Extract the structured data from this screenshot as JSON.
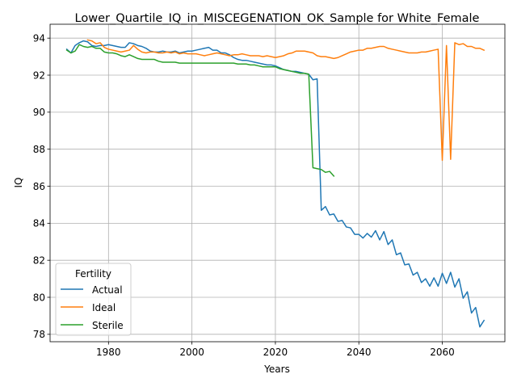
{
  "chart_data": {
    "type": "line",
    "title": "Lower_Quartile_IQ_in_MISCEGENATION_OK_Sample for White_Female",
    "xlabel": "Years",
    "ylabel": "IQ",
    "xlim": [
      1966,
      2075
    ],
    "ylim": [
      77.6,
      94.75
    ],
    "xticks": [
      1980,
      2000,
      2020,
      2040,
      2060
    ],
    "yticks": [
      78,
      80,
      82,
      84,
      86,
      88,
      90,
      92,
      94
    ],
    "grid": true,
    "legend": {
      "title": "Fertility",
      "placement": "lower-left"
    },
    "series": [
      {
        "name": "Actual",
        "color": "#1f77b4",
        "x": [
          1970,
          1971,
          1972,
          1973,
          1974,
          1975,
          1976,
          1977,
          1978,
          1979,
          1980,
          1981,
          1982,
          1983,
          1984,
          1985,
          1986,
          1987,
          1988,
          1989,
          1990,
          1991,
          1992,
          1993,
          1994,
          1995,
          1996,
          1997,
          1998,
          1999,
          2000,
          2001,
          2002,
          2003,
          2004,
          2005,
          2006,
          2007,
          2008,
          2009,
          2010,
          2011,
          2012,
          2013,
          2014,
          2015,
          2016,
          2017,
          2018,
          2019,
          2020,
          2021,
          2022,
          2023,
          2024,
          2025,
          2026,
          2027,
          2028,
          2029,
          2030,
          2031,
          2032,
          2033,
          2034,
          2035,
          2036,
          2037,
          2038,
          2039,
          2040,
          2041,
          2042,
          2043,
          2044,
          2045,
          2046,
          2047,
          2048,
          2049,
          2050,
          2051,
          2052,
          2053,
          2054,
          2055,
          2056,
          2057,
          2058,
          2059,
          2060,
          2061,
          2062,
          2063,
          2064,
          2065,
          2066,
          2067,
          2068,
          2069,
          2070
        ],
        "y": [
          93.4,
          93.2,
          93.6,
          93.75,
          93.85,
          93.8,
          93.6,
          93.55,
          93.6,
          93.6,
          93.65,
          93.6,
          93.55,
          93.5,
          93.5,
          93.75,
          93.7,
          93.6,
          93.55,
          93.45,
          93.3,
          93.25,
          93.25,
          93.3,
          93.25,
          93.25,
          93.3,
          93.2,
          93.25,
          93.3,
          93.3,
          93.35,
          93.4,
          93.45,
          93.5,
          93.35,
          93.35,
          93.2,
          93.2,
          93.1,
          92.95,
          92.85,
          92.8,
          92.8,
          92.75,
          92.7,
          92.65,
          92.6,
          92.55,
          92.55,
          92.5,
          92.4,
          92.3,
          92.25,
          92.2,
          92.2,
          92.15,
          92.1,
          92.05,
          91.75,
          91.8,
          84.7,
          84.9,
          84.45,
          84.5,
          84.1,
          84.15,
          83.8,
          83.75,
          83.4,
          83.4,
          83.2,
          83.45,
          83.25,
          83.6,
          83.1,
          83.55,
          82.85,
          83.1,
          82.3,
          82.4,
          81.75,
          81.8,
          81.2,
          81.35,
          80.8,
          81.0,
          80.6,
          81.05,
          80.6,
          81.3,
          80.75,
          81.35,
          80.55,
          81.0,
          79.95,
          80.3,
          79.15,
          79.45,
          78.4,
          78.75
        ]
      },
      {
        "name": "Ideal",
        "color": "#ff7f0e",
        "x": [
          1975,
          1976,
          1977,
          1978,
          1979,
          1980,
          1981,
          1982,
          1983,
          1984,
          1985,
          1986,
          1987,
          1988,
          1989,
          1990,
          1991,
          1992,
          1993,
          1994,
          1995,
          1996,
          1997,
          1998,
          1999,
          2000,
          2001,
          2002,
          2003,
          2004,
          2005,
          2006,
          2007,
          2008,
          2009,
          2010,
          2011,
          2012,
          2013,
          2014,
          2015,
          2016,
          2017,
          2018,
          2019,
          2020,
          2021,
          2022,
          2023,
          2024,
          2025,
          2026,
          2027,
          2028,
          2029,
          2030,
          2031,
          2032,
          2033,
          2034,
          2035,
          2036,
          2037,
          2038,
          2039,
          2040,
          2041,
          2042,
          2043,
          2044,
          2045,
          2046,
          2047,
          2048,
          2049,
          2050,
          2051,
          2052,
          2053,
          2054,
          2055,
          2056,
          2057,
          2058,
          2059,
          2060,
          2061,
          2062,
          2063,
          2064,
          2065,
          2066,
          2067,
          2068,
          2069,
          2070
        ],
        "y": [
          93.9,
          93.85,
          93.7,
          93.75,
          93.5,
          93.4,
          93.35,
          93.3,
          93.25,
          93.3,
          93.35,
          93.6,
          93.4,
          93.25,
          93.2,
          93.25,
          93.25,
          93.2,
          93.2,
          93.25,
          93.2,
          93.25,
          93.15,
          93.2,
          93.15,
          93.15,
          93.15,
          93.1,
          93.05,
          93.1,
          93.15,
          93.2,
          93.15,
          93.1,
          93.05,
          93.1,
          93.1,
          93.15,
          93.1,
          93.05,
          93.05,
          93.05,
          93.0,
          93.05,
          93.0,
          92.95,
          93.0,
          93.05,
          93.15,
          93.2,
          93.3,
          93.3,
          93.3,
          93.25,
          93.2,
          93.05,
          93.0,
          93.0,
          92.95,
          92.9,
          92.95,
          93.05,
          93.15,
          93.25,
          93.3,
          93.35,
          93.35,
          93.45,
          93.45,
          93.5,
          93.55,
          93.55,
          93.45,
          93.4,
          93.35,
          93.3,
          93.25,
          93.2,
          93.2,
          93.2,
          93.25,
          93.25,
          93.3,
          93.35,
          93.4,
          87.4,
          93.6,
          87.45,
          93.75,
          93.65,
          93.7,
          93.55,
          93.55,
          93.45,
          93.45,
          93.35
        ]
      },
      {
        "name": "Sterile",
        "color": "#2ca02c",
        "x": [
          1970,
          1971,
          1972,
          1973,
          1974,
          1975,
          1976,
          1977,
          1978,
          1979,
          1980,
          1981,
          1982,
          1983,
          1984,
          1985,
          1986,
          1987,
          1988,
          1989,
          1990,
          1991,
          1992,
          1993,
          1994,
          1995,
          1996,
          1997,
          1998,
          1999,
          2000,
          2001,
          2002,
          2003,
          2004,
          2005,
          2006,
          2007,
          2008,
          2009,
          2010,
          2011,
          2012,
          2013,
          2014,
          2015,
          2016,
          2017,
          2018,
          2019,
          2020,
          2021,
          2022,
          2023,
          2024,
          2025,
          2026,
          2027,
          2028,
          2029,
          2030,
          2031,
          2032,
          2033,
          2034
        ],
        "y": [
          93.35,
          93.2,
          93.3,
          93.65,
          93.55,
          93.5,
          93.55,
          93.45,
          93.45,
          93.25,
          93.2,
          93.2,
          93.15,
          93.05,
          93.0,
          93.1,
          93.0,
          92.9,
          92.85,
          92.85,
          92.85,
          92.85,
          92.75,
          92.7,
          92.7,
          92.7,
          92.7,
          92.65,
          92.65,
          92.65,
          92.65,
          92.65,
          92.65,
          92.65,
          92.65,
          92.65,
          92.65,
          92.65,
          92.65,
          92.65,
          92.65,
          92.6,
          92.6,
          92.6,
          92.55,
          92.55,
          92.5,
          92.45,
          92.45,
          92.45,
          92.45,
          92.35,
          92.3,
          92.25,
          92.2,
          92.15,
          92.1,
          92.1,
          92.05,
          87.0,
          86.95,
          86.9,
          86.75,
          86.8,
          86.55
        ]
      }
    ]
  }
}
